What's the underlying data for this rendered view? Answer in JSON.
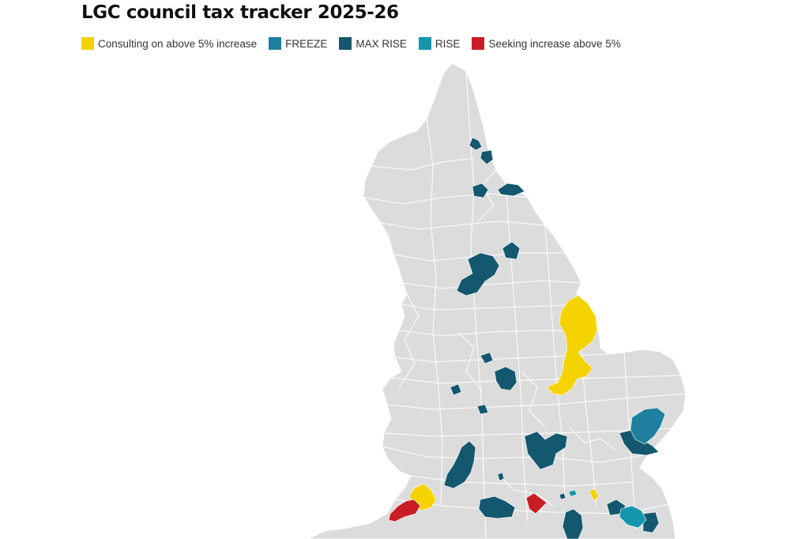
{
  "title": "LGC council tax tracker 2025-26",
  "legend": [
    {
      "label": "Consulting on above 5% increase",
      "color": "#f4d300"
    },
    {
      "label": "FREEZE",
      "color": "#1f7fa0"
    },
    {
      "label": "MAX RISE",
      "color": "#14586f"
    },
    {
      "label": "RISE",
      "color": "#1496ad"
    },
    {
      "label": "Seeking increase above 5%",
      "color": "#c91d24"
    }
  ],
  "map": {
    "region": "England",
    "base_color": "#dcdcdc",
    "border_color": "#ffffff"
  }
}
